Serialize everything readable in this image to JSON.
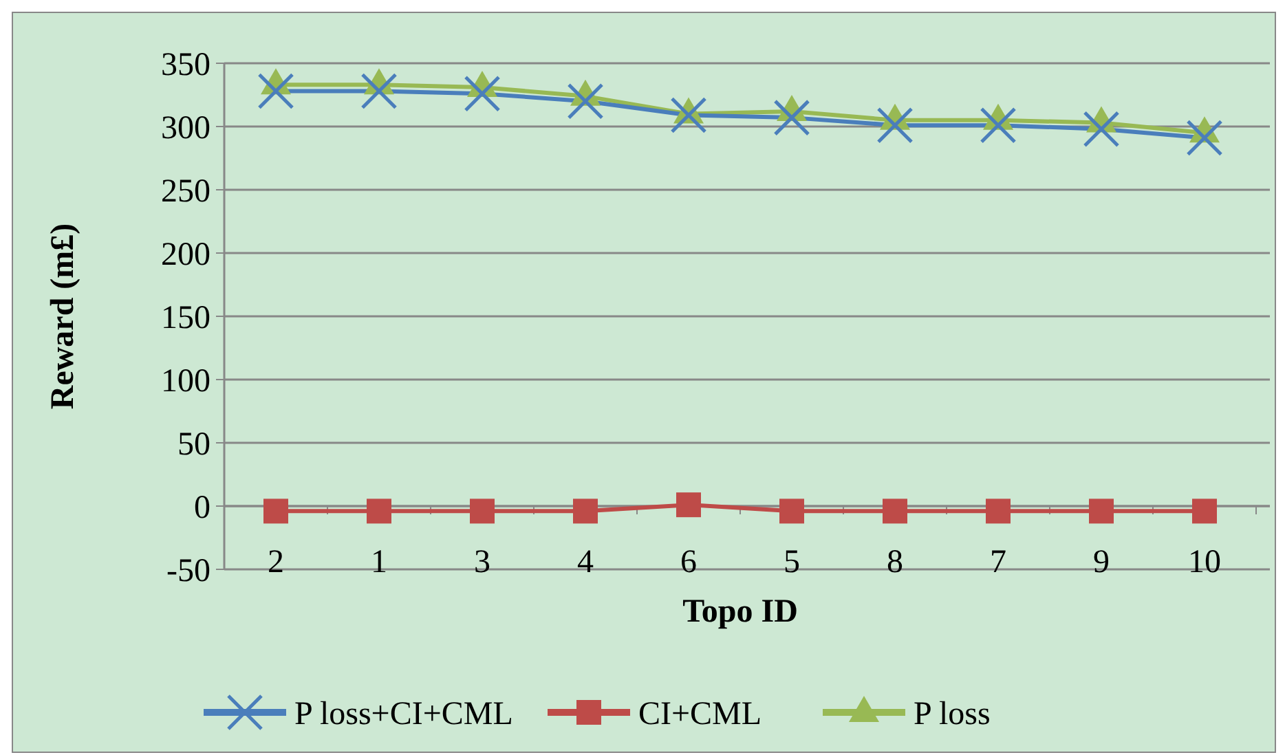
{
  "chart_data": {
    "type": "line",
    "xlabel": "Topo ID",
    "ylabel": "Reward (m£)",
    "categories": [
      "2",
      "1",
      "3",
      "4",
      "6",
      "5",
      "8",
      "7",
      "9",
      "10"
    ],
    "ylim": [
      -50,
      350
    ],
    "yticks": [
      -50,
      0,
      50,
      100,
      150,
      200,
      250,
      300,
      350
    ],
    "grid": "y",
    "legend": "bottom",
    "series": [
      {
        "name": "P loss+CI+CML",
        "color": "#4a7ebb",
        "marker": "cross",
        "values": [
          328,
          328,
          326,
          320,
          309,
          307,
          301,
          301,
          298,
          291
        ]
      },
      {
        "name": "CI+CML",
        "color": "#be4b48",
        "marker": "square",
        "values": [
          -4,
          -4,
          -4,
          -4,
          1,
          -4,
          -4,
          -4,
          -4,
          -4
        ]
      },
      {
        "name": "P loss",
        "color": "#98b954",
        "marker": "triangle",
        "values": [
          333,
          333,
          331,
          324,
          310,
          312,
          305,
          305,
          303,
          295
        ]
      }
    ]
  }
}
